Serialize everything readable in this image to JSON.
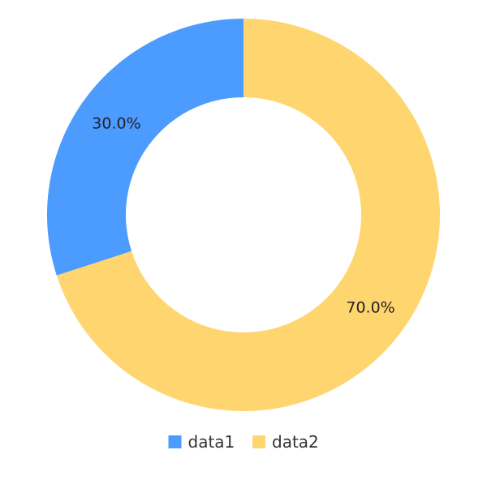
{
  "chart_data": {
    "type": "pie",
    "variant": "donut",
    "title": "",
    "slices": [
      {
        "name": "data1",
        "value": 30.0,
        "label": "30.0%",
        "color": "#4C9BFF"
      },
      {
        "name": "data2",
        "value": 70.0,
        "label": "70.0%",
        "color": "#FFD570"
      }
    ],
    "legend": {
      "position": "bottom",
      "entries": [
        "data1",
        "data2"
      ]
    }
  }
}
